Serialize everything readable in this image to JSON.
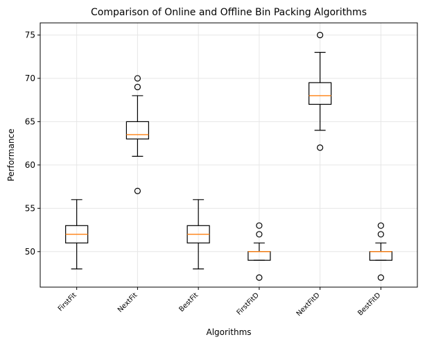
{
  "chart_data": {
    "type": "box",
    "title": "Comparison of Online and Offline Bin Packing Algorithms",
    "xlabel": "Algorithms",
    "ylabel": "Performance",
    "ylim": [
      45.9,
      76.4
    ],
    "yticks": [
      50,
      55,
      60,
      65,
      70,
      75
    ],
    "grid": true,
    "categories": [
      "FirstFit",
      "NextFit",
      "BestFit",
      "FirstFitD",
      "NextFitD",
      "BestFitD"
    ],
    "boxes": [
      {
        "name": "FirstFit",
        "whisker_low": 48,
        "q1": 51,
        "median": 52,
        "q3": 53,
        "whisker_high": 56,
        "outliers": []
      },
      {
        "name": "NextFit",
        "whisker_low": 61,
        "q1": 63,
        "median": 63.5,
        "q3": 65,
        "whisker_high": 68,
        "outliers": [
          57,
          69,
          70
        ]
      },
      {
        "name": "BestFit",
        "whisker_low": 48,
        "q1": 51,
        "median": 52,
        "q3": 53,
        "whisker_high": 56,
        "outliers": []
      },
      {
        "name": "FirstFitD",
        "whisker_low": 49,
        "q1": 49,
        "median": 50,
        "q3": 50,
        "whisker_high": 51,
        "outliers": [
          47,
          52,
          53
        ]
      },
      {
        "name": "NextFitD",
        "whisker_low": 64,
        "q1": 67,
        "median": 68,
        "q3": 69.5,
        "whisker_high": 73,
        "outliers": [
          62,
          75
        ]
      },
      {
        "name": "BestFitD",
        "whisker_low": 49,
        "q1": 49,
        "median": 50,
        "q3": 50,
        "whisker_high": 51,
        "outliers": [
          47,
          52,
          53
        ]
      }
    ],
    "colors": {
      "box": "#000000",
      "median": "#ff7f0e",
      "grid": "#e6e6e6"
    }
  }
}
